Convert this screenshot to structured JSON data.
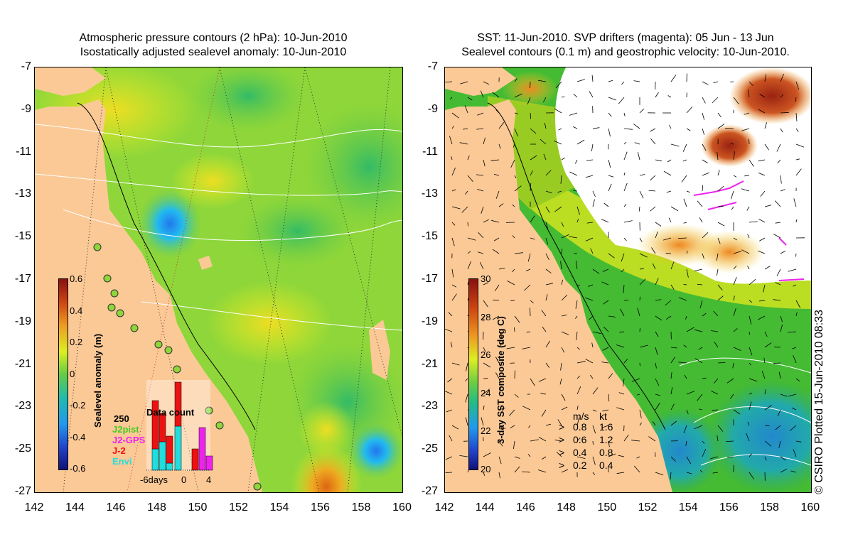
{
  "left": {
    "title_line1": "Atmospheric pressure contours (2 hPa): 10-Jun-2010",
    "title_line2": "Isostatically adjusted sealevel anomaly: 10-Jun-2010",
    "colorbar": {
      "title": "Sealevel anomaly (m)",
      "ticks": [
        "0.6",
        "0.4",
        "0.2",
        "0",
        "-0.2",
        "-0.4",
        "-0.6"
      ]
    },
    "data_count": {
      "title": "Data count",
      "max_label": "250",
      "x_labels": [
        "-6days",
        "0",
        "4"
      ],
      "legend": [
        {
          "label": "J2pist",
          "color": "#44cc22"
        },
        {
          "label": "J2-GPS",
          "color": "#ee22ee"
        },
        {
          "label": "J-2",
          "color": "#ee1111"
        },
        {
          "label": "Envi",
          "color": "#22dddd"
        }
      ]
    }
  },
  "right": {
    "title_line1": "SST: 11-Jun-2010. SVP drifters (magenta): 05 Jun - 13 Jun",
    "title_line2": "Sealevel contours (0.1 m) and geostrophic velocity: 10-Jun-2010.",
    "colorbar": {
      "title": "3-day SST composite (deg C)",
      "ticks": [
        "30",
        "28",
        "26",
        "24",
        "22",
        "20"
      ]
    },
    "velocity_legend": {
      "header_ms": "m/s",
      "header_kt": "kt",
      "rows": [
        {
          "ms": "0.8",
          "kt": "1.6"
        },
        {
          "ms": "0.6",
          "kt": "1.2"
        },
        {
          "ms": "0.4",
          "kt": "0.8"
        },
        {
          "ms": "0.2",
          "kt": "0.4"
        }
      ]
    }
  },
  "axes": {
    "y_ticks": [
      "-7",
      "-9",
      "-11",
      "-13",
      "-15",
      "-17",
      "-19",
      "-21",
      "-23",
      "-25",
      "-27"
    ],
    "x_ticks": [
      "142",
      "144",
      "146",
      "148",
      "150",
      "152",
      "154",
      "156",
      "158",
      "160"
    ]
  },
  "copyright": "© CSIRO Plotted 15-Jun-2010 08:33",
  "colors": {
    "land": "#fbc996",
    "sea_green": "#7fd63a",
    "sea_yellow": "#d9ee2a",
    "anomaly_blue": "#22aaee",
    "sst_orange": "#ee9922",
    "sst_red": "#aa3311",
    "cloud": "#ffffff",
    "drifter": "#ee22ee"
  }
}
